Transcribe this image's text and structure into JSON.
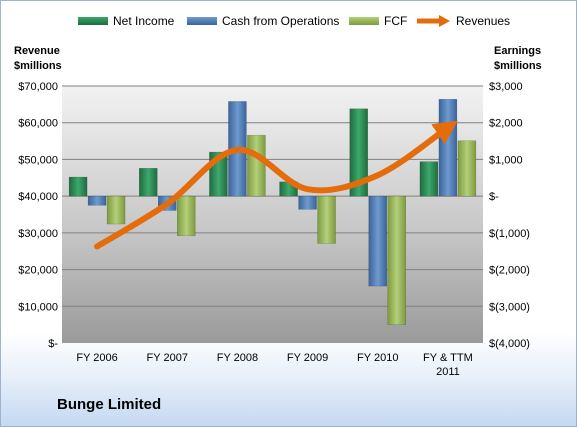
{
  "chart_data": {
    "type": "bar",
    "title": "",
    "company": "Bunge Limited",
    "categories": [
      [
        "FY 2006"
      ],
      [
        "FY 2007"
      ],
      [
        "FY 2008"
      ],
      [
        "FY 2009"
      ],
      [
        "FY 2010"
      ],
      [
        "FY & TTM",
        "2011"
      ]
    ],
    "left_axis": {
      "label": [
        "Revenue",
        "$millions"
      ],
      "ylim": [
        0,
        70000
      ],
      "ticks": [
        "$-",
        "$10,000",
        "$20,000",
        "$30,000",
        "$40,000",
        "$50,000",
        "$60,000",
        "$70,000"
      ]
    },
    "right_axis": {
      "label": [
        "Earnings",
        "$millions"
      ],
      "ylim": [
        -4000,
        3000
      ],
      "ticks": [
        "$(4,000)",
        "$(3,000)",
        "$(2,000)",
        "$(1,000)",
        "$-",
        "$1,000",
        "$2,000",
        "$3,000"
      ]
    },
    "series": [
      {
        "name": "Net Income",
        "type": "bar",
        "axis": "right",
        "color": "#2e8b57",
        "values": [
          520,
          760,
          1200,
          390,
          2380,
          940
        ]
      },
      {
        "name": "Cash from Operations",
        "type": "bar",
        "axis": "right",
        "color": "#4f81bd",
        "values": [
          -250,
          -390,
          2580,
          -360,
          -2450,
          2640
        ]
      },
      {
        "name": "FCF",
        "type": "bar",
        "axis": "right",
        "color": "#9bbb59",
        "values": [
          -760,
          -1080,
          1660,
          -1290,
          -3500,
          1510
        ]
      },
      {
        "name": "Revenues",
        "type": "line",
        "axis": "left",
        "color": "#e46c0a",
        "values": [
          26300,
          37900,
          52600,
          41900,
          45700,
          58700
        ]
      }
    ],
    "grid": true,
    "legend": "top"
  }
}
